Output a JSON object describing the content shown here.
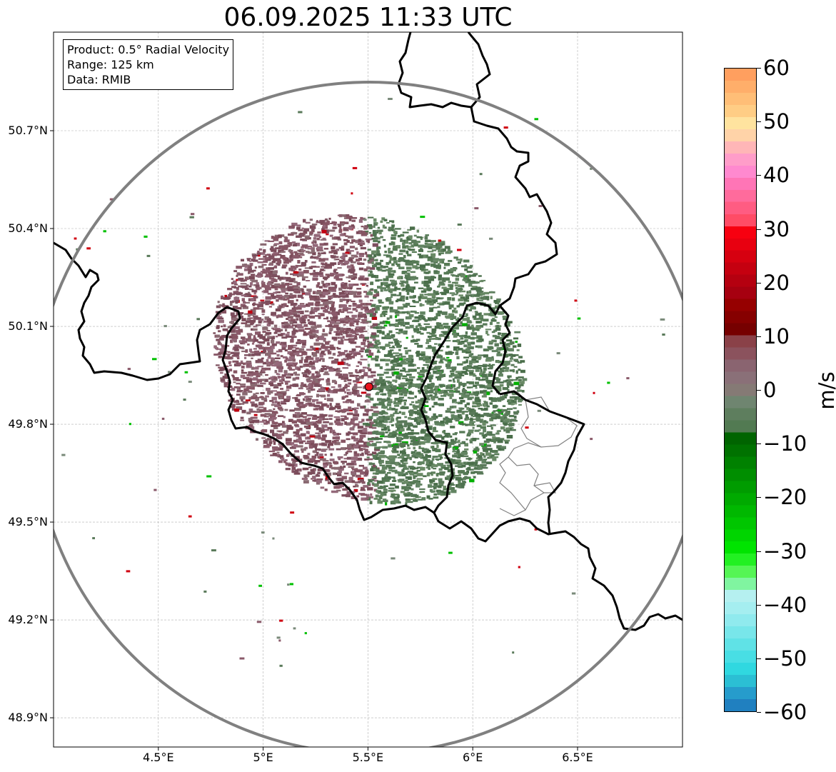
{
  "title": "06.09.2025 11:33 UTC",
  "info_box": {
    "product": "Product: 0.5° Radial Velocity",
    "range": "Range: 125 km",
    "data": "Data: RMIB"
  },
  "map": {
    "lon_range": [
      4.0,
      7.0
    ],
    "lat_range": [
      48.8,
      50.98
    ],
    "lat_ticks": [
      {
        "value": 50.7,
        "label": "50.7°N"
      },
      {
        "value": 50.4,
        "label": "50.4°N"
      },
      {
        "value": 50.1,
        "label": "50.1°N"
      },
      {
        "value": 49.8,
        "label": "49.8°N"
      },
      {
        "value": 49.5,
        "label": "49.5°N"
      },
      {
        "value": 49.2,
        "label": "49.2°N"
      },
      {
        "value": 48.9,
        "label": "48.9°N"
      }
    ],
    "lon_ticks": [
      {
        "value": 4.5,
        "label": "4.5°E"
      },
      {
        "value": 5.0,
        "label": "5°E"
      },
      {
        "value": 5.5,
        "label": "5.5°E"
      },
      {
        "value": 6.0,
        "label": "6°E"
      },
      {
        "value": 6.5,
        "label": "6.5°E"
      }
    ],
    "radar_site": {
      "lon": 5.505,
      "lat": 49.915,
      "color": "#e8141e"
    },
    "range_ring_km": 125,
    "gridlines": true,
    "colors": {
      "approaching": "#5a7a5a",
      "receding": "#8a5a6a",
      "border": "#000000",
      "ring": "#808080",
      "region_border": "#808080"
    }
  },
  "colorbar": {
    "unit": "m/s",
    "min": -60,
    "max": 60,
    "ticks": [
      {
        "value": 60,
        "label": "60"
      },
      {
        "value": 50,
        "label": "50"
      },
      {
        "value": 40,
        "label": "40"
      },
      {
        "value": 30,
        "label": "30"
      },
      {
        "value": 20,
        "label": "20"
      },
      {
        "value": 10,
        "label": "10"
      },
      {
        "value": 0,
        "label": "0"
      },
      {
        "value": -10,
        "label": "−10"
      },
      {
        "value": -20,
        "label": "−20"
      },
      {
        "value": -30,
        "label": "−30"
      },
      {
        "value": -40,
        "label": "−40"
      },
      {
        "value": -50,
        "label": "−50"
      },
      {
        "value": -60,
        "label": "−60"
      }
    ],
    "colors_top_to_bottom": [
      "#ff9f5f",
      "#ffae6a",
      "#ffbe77",
      "#ffcd85",
      "#ffe39f",
      "#ffd3a8",
      "#ffb6b7",
      "#ff9dc9",
      "#ff89cf",
      "#ff75b6",
      "#ff6b9c",
      "#ff5c82",
      "#ff4c66",
      "#f70010",
      "#e80010",
      "#d60010",
      "#c50010",
      "#b50010",
      "#a60010",
      "#960000",
      "#860000",
      "#760000",
      "#8a4148",
      "#8b525d",
      "#8a6470",
      "#8a7078",
      "#857a75",
      "#6f8570",
      "#5e7e5e",
      "#527a52",
      "#006400",
      "#007200",
      "#008100",
      "#008e00",
      "#009c00",
      "#00aa00",
      "#00b800",
      "#00c600",
      "#00d500",
      "#00e400",
      "#22f022",
      "#55f555",
      "#80f5a0",
      "#b5f0f0",
      "#a5eef0",
      "#90eaee",
      "#78e6ea",
      "#60e2e6",
      "#48dee4",
      "#30d8e0",
      "#2bbfd4",
      "#269ccc",
      "#2080c0"
    ]
  }
}
